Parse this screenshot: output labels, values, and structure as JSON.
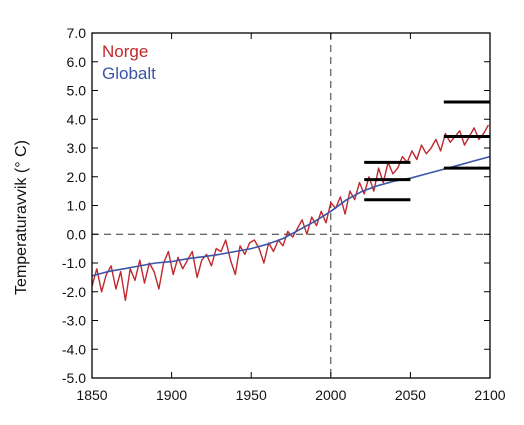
{
  "chart_data": {
    "type": "line",
    "title": "",
    "xlabel": "",
    "ylabel": "Temperaturavvik (° C)",
    "xlim": [
      1850,
      2100
    ],
    "ylim": [
      -5.0,
      7.0
    ],
    "x_ticks": [
      "1850",
      "1900",
      "1950",
      "2000",
      "2050",
      "2100"
    ],
    "y_ticks": [
      "7.0",
      "6.0",
      "5.0",
      "4.0",
      "3.0",
      "2.0",
      "1.0",
      "0.0",
      "-1.0",
      "-2.0",
      "-3.0",
      "-4.0",
      "-5.0"
    ],
    "x_tick_values": [
      1850,
      1900,
      1950,
      2000,
      2050,
      2100
    ],
    "y_tick_values": [
      7,
      6,
      5,
      4,
      3,
      2,
      1,
      0,
      -1,
      -2,
      -3,
      -4,
      -5
    ],
    "legend_position": "top-left",
    "reference_lines": {
      "x": 2000,
      "y": 0
    },
    "series": [
      {
        "name": "Norge",
        "color": "#c0282d",
        "x": [
          1850,
          1853,
          1856,
          1859,
          1862,
          1865,
          1868,
          1871,
          1874,
          1877,
          1880,
          1883,
          1886,
          1889,
          1892,
          1895,
          1898,
          1901,
          1904,
          1907,
          1910,
          1913,
          1916,
          1919,
          1922,
          1925,
          1928,
          1931,
          1934,
          1937,
          1940,
          1943,
          1946,
          1949,
          1952,
          1955,
          1958,
          1961,
          1964,
          1967,
          1970,
          1973,
          1976,
          1979,
          1982,
          1985,
          1988,
          1991,
          1994,
          1997,
          2000,
          2003,
          2006,
          2009,
          2012,
          2015,
          2018,
          2021,
          2024,
          2027,
          2030,
          2033,
          2036,
          2039,
          2042,
          2045,
          2048,
          2051,
          2054,
          2057,
          2060,
          2063,
          2066,
          2069,
          2072,
          2075,
          2078,
          2081,
          2084,
          2087,
          2090,
          2093,
          2096,
          2099
        ],
        "values": [
          -1.8,
          -1.2,
          -2.0,
          -1.4,
          -1.1,
          -1.9,
          -1.3,
          -2.3,
          -1.2,
          -1.6,
          -0.9,
          -1.7,
          -1.0,
          -1.3,
          -1.9,
          -1.0,
          -0.6,
          -1.4,
          -0.8,
          -1.2,
          -0.9,
          -0.6,
          -1.5,
          -0.9,
          -0.7,
          -1.1,
          -0.5,
          -0.6,
          -0.2,
          -0.9,
          -1.4,
          -0.4,
          -0.7,
          -0.3,
          -0.2,
          -0.5,
          -1.0,
          -0.3,
          -0.6,
          -0.2,
          -0.4,
          0.1,
          -0.1,
          0.2,
          0.5,
          0.0,
          0.6,
          0.3,
          0.8,
          0.4,
          1.1,
          0.9,
          1.3,
          0.7,
          1.5,
          1.2,
          1.8,
          1.4,
          2.0,
          1.5,
          2.3,
          1.8,
          2.5,
          2.1,
          2.3,
          2.7,
          2.5,
          2.9,
          2.6,
          3.1,
          2.8,
          3.0,
          3.3,
          2.9,
          3.5,
          3.2,
          3.4,
          3.6,
          3.1,
          3.4,
          3.7,
          3.3,
          3.5,
          3.8
        ]
      },
      {
        "name": "Globalt",
        "color": "#3a56a8",
        "x": [
          1850,
          1860,
          1870,
          1880,
          1890,
          1900,
          1910,
          1920,
          1930,
          1940,
          1950,
          1960,
          1970,
          1980,
          1990,
          2000,
          2010,
          2020,
          2030,
          2040,
          2050,
          2060,
          2070,
          2080,
          2090,
          2100
        ],
        "values": [
          -1.45,
          -1.3,
          -1.2,
          -1.1,
          -1.0,
          -0.95,
          -0.85,
          -0.78,
          -0.7,
          -0.6,
          -0.5,
          -0.35,
          -0.15,
          0.15,
          0.45,
          0.8,
          1.2,
          1.5,
          1.7,
          1.85,
          1.95,
          2.1,
          2.25,
          2.4,
          2.55,
          2.7
        ]
      }
    ],
    "range_markers": [
      {
        "x_start": 2021,
        "x_end": 2050,
        "values": [
          1.2,
          1.9,
          2.5
        ]
      },
      {
        "x_start": 2071,
        "x_end": 2100,
        "values": [
          2.3,
          3.4,
          4.6
        ]
      }
    ]
  }
}
